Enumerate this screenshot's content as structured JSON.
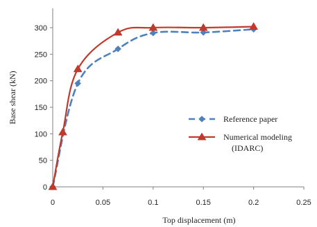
{
  "chart_data": {
    "type": "line",
    "xlabel": "Top displacement (m)",
    "ylabel": "Base shear (kN)",
    "xlim": [
      0,
      0.25
    ],
    "ylim": [
      0,
      300
    ],
    "xticks": [
      0,
      0.05,
      0.1,
      0.15,
      0.2,
      0.25
    ],
    "xtick_labels": [
      "0",
      "0.05",
      "0.1",
      "0.15",
      "0.2",
      "0.25"
    ],
    "yticks": [
      0,
      50,
      100,
      150,
      200,
      250,
      300
    ],
    "ytick_labels": [
      "0",
      "50",
      "100",
      "150",
      "200",
      "250",
      "300"
    ],
    "grid": false,
    "legend_position": "right",
    "series": [
      {
        "name": "Reference paper",
        "color": "#4f81bd",
        "line_style": "dashed",
        "marker": "diamond",
        "x": [
          0,
          0.025,
          0.065,
          0.1,
          0.15,
          0.2
        ],
        "y": [
          0,
          195,
          260,
          290,
          291,
          297
        ]
      },
      {
        "name": "Numerical modeling (IDARC)",
        "legend_lines": [
          "Numerical modeling",
          "(IDARC)"
        ],
        "color": "#c0392b",
        "line_style": "solid",
        "marker": "triangle",
        "x": [
          0,
          0.01,
          0.025,
          0.065,
          0.1,
          0.15,
          0.2
        ],
        "y": [
          0,
          103,
          222,
          291,
          300,
          300,
          302
        ]
      }
    ]
  }
}
